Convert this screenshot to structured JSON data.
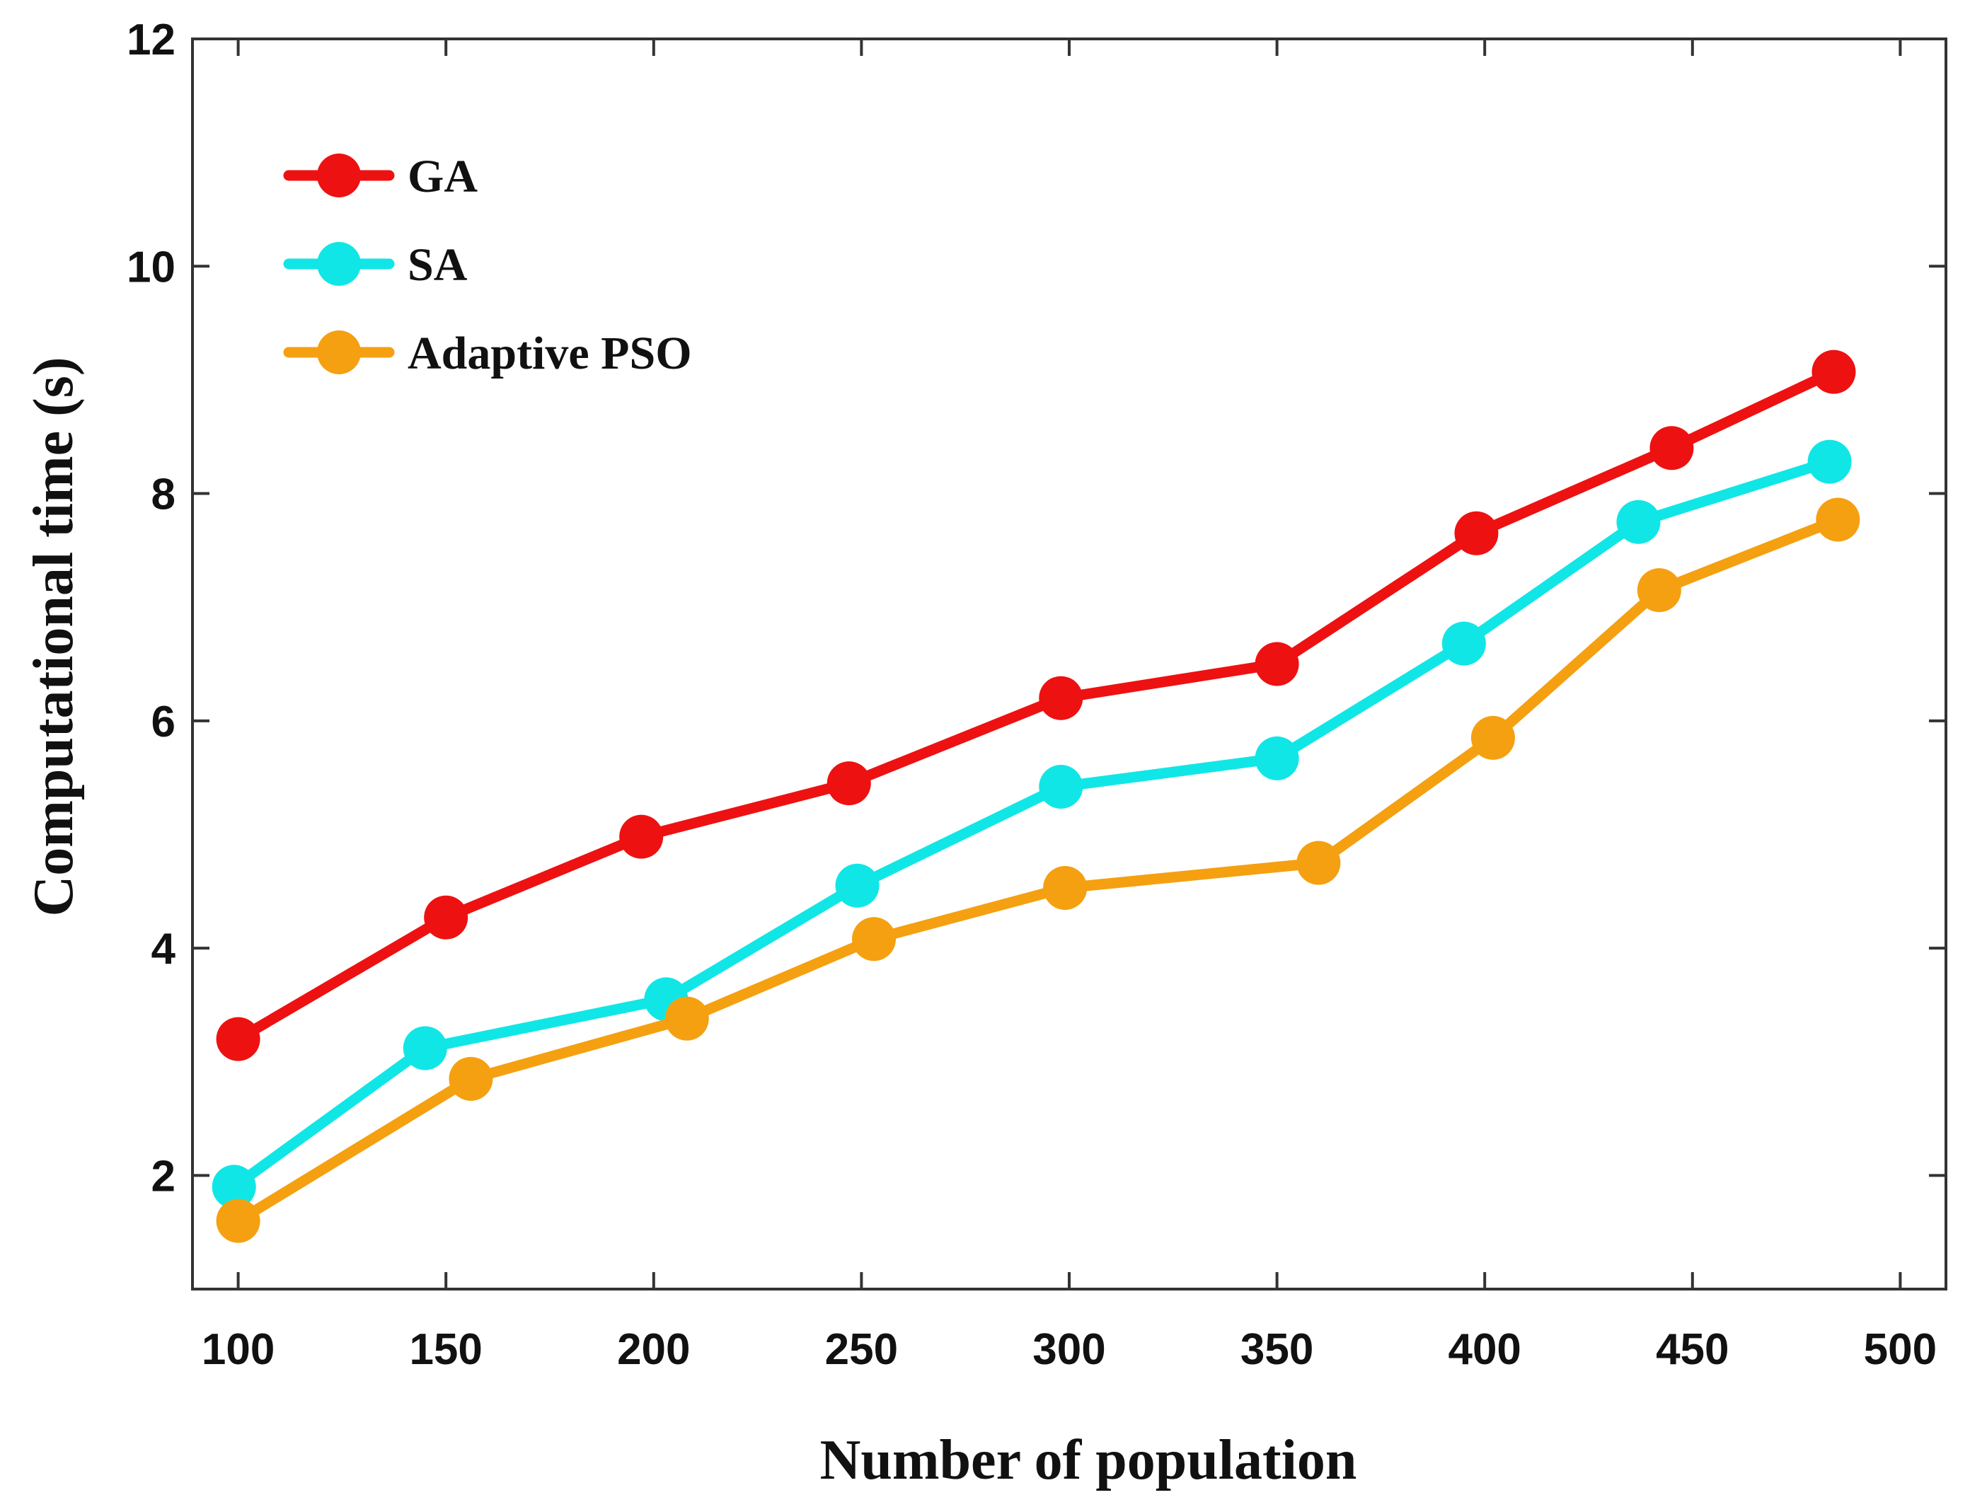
{
  "chart_data": {
    "type": "line",
    "title": "",
    "xlabel": "Number of population",
    "ylabel": "Computational time (s)",
    "xlim": [
      89,
      511
    ],
    "ylim": [
      1,
      12
    ],
    "xticks": [
      100,
      150,
      200,
      250,
      300,
      350,
      400,
      450,
      500
    ],
    "xtick_labels": [
      "100",
      "150",
      "200",
      "250",
      "300",
      "350",
      "400",
      "450",
      "500"
    ],
    "yticks": [
      2,
      4,
      6,
      8,
      10,
      12
    ],
    "ytick_labels": [
      "2",
      "4",
      "6",
      "8",
      "10",
      "12"
    ],
    "grid": false,
    "legend_position": "top-left",
    "series": [
      {
        "name": "GA",
        "color": "#ee1111",
        "x": [
          100,
          150,
          197,
          247,
          298,
          350,
          398,
          445,
          484
        ],
        "y": [
          3.2,
          4.27,
          4.98,
          5.45,
          6.2,
          6.5,
          7.65,
          8.4,
          9.07
        ]
      },
      {
        "name": "SA",
        "color": "#11e6e6",
        "x": [
          99,
          145,
          203,
          249,
          298,
          350,
          395,
          437,
          483
        ],
        "y": [
          1.9,
          3.12,
          3.55,
          4.55,
          5.42,
          5.67,
          6.68,
          7.75,
          8.28
        ]
      },
      {
        "name": "Adaptive PSO",
        "color": "#f5a010",
        "x": [
          100,
          156,
          208,
          253,
          299,
          360,
          402,
          442,
          485
        ],
        "y": [
          1.6,
          2.85,
          3.38,
          4.08,
          4.53,
          4.75,
          5.85,
          7.15,
          7.77
        ]
      }
    ]
  }
}
